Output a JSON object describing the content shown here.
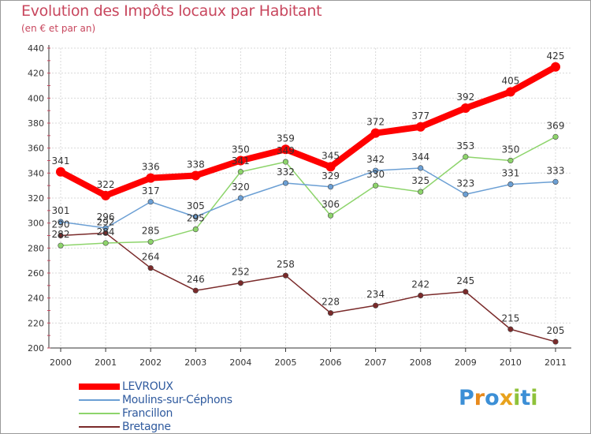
{
  "title": "Evolution des Impôts locaux par Habitant",
  "subtitle": "(en € et par an)",
  "logo": {
    "text": "Proxiti",
    "letters": [
      "P",
      "r",
      "o",
      "x",
      "i",
      "t",
      "i"
    ],
    "colors": [
      "#3c8fd6",
      "#e88a1c",
      "#3c8fd6",
      "#e8a21c",
      "#8fc23a",
      "#3c8fd6",
      "#8fc23a"
    ]
  },
  "chart_data": {
    "type": "line",
    "title": "Evolution des Impôts locaux par Habitant",
    "subtitle": "(en € et par an)",
    "xlabel": "",
    "ylabel": "",
    "x": [
      "2000",
      "2001",
      "2002",
      "2003",
      "2004",
      "2005",
      "2006",
      "2007",
      "2008",
      "2009",
      "2010",
      "2011"
    ],
    "ylim": [
      200,
      440
    ],
    "yticks": [
      "200",
      "220",
      "240",
      "260",
      "280",
      "300",
      "320",
      "340",
      "360",
      "380",
      "400",
      "420",
      "440"
    ],
    "grid": true,
    "legend_position": "bottom-left",
    "series": [
      {
        "name": "LEVROUX",
        "color": "#ff0000",
        "values": [
          341,
          322,
          336,
          338,
          350,
          359,
          345,
          372,
          377,
          392,
          405,
          425
        ],
        "labels": [
          "341",
          "322",
          "336",
          "338",
          "350",
          "359",
          "345",
          "372",
          "377",
          "392",
          "405",
          "425"
        ]
      },
      {
        "name": "Moulins-sur-Céphons",
        "color": "#6b9fd4",
        "values": [
          301,
          296,
          317,
          305,
          320,
          332,
          329,
          342,
          344,
          323,
          331,
          333
        ],
        "labels": [
          "301",
          "296",
          "317",
          "305",
          "320",
          "332",
          "329",
          "342",
          "344",
          "323",
          "331",
          "333"
        ]
      },
      {
        "name": "Francillon",
        "color": "#8dd46b",
        "values": [
          282,
          284,
          285,
          295,
          341,
          349,
          306,
          330,
          325,
          353,
          350,
          369
        ],
        "labels": [
          "282",
          "284",
          "285",
          "295",
          "341",
          "349",
          "306",
          "330",
          "325",
          "353",
          "350",
          "369"
        ]
      },
      {
        "name": "Bretagne",
        "color": "#7a2a2a",
        "values": [
          290,
          292,
          264,
          246,
          252,
          258,
          228,
          234,
          242,
          245,
          215,
          205
        ],
        "labels": [
          "290",
          "292",
          "264",
          "246",
          "252",
          "258",
          "228",
          "234",
          "242",
          "245",
          "215",
          "205"
        ]
      }
    ]
  }
}
